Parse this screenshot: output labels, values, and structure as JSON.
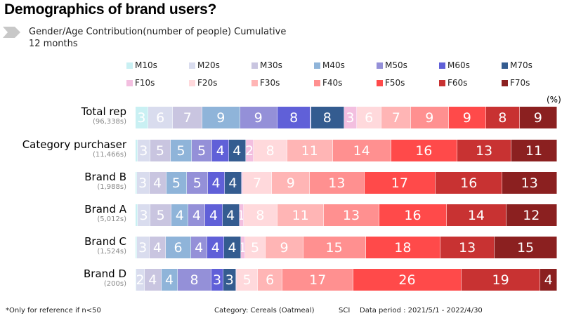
{
  "chart_data": {
    "type": "bar",
    "orientation": "horizontal",
    "stacked": true,
    "title": "Demographics of brand users?",
    "subtitle": "Gender/Age Contribution(number of people) Cumulative",
    "subtitle2": "12 months",
    "unit": "(%)",
    "legend_placement": "top",
    "categories": [
      "Total rep",
      "Category purchaser",
      "Brand B",
      "Brand A",
      "Brand C",
      "Brand D"
    ],
    "category_notes": [
      "(96,338s)",
      "(11,466s)",
      "(1,988s)",
      "(5,012s)",
      "(1,524s)",
      "(200s)"
    ],
    "series": [
      {
        "name": "M10s",
        "color": "#c9f0f3",
        "values": [
          3,
          0.5,
          0.3,
          0.5,
          0.3,
          0.2
        ]
      },
      {
        "name": "M20s",
        "color": "#d9dcee",
        "values": [
          6,
          3,
          3,
          3,
          3,
          2
        ]
      },
      {
        "name": "M30s",
        "color": "#c9c5e0",
        "values": [
          7,
          5,
          4,
          5,
          4,
          4
        ]
      },
      {
        "name": "M40s",
        "color": "#8fb4d9",
        "values": [
          9,
          5,
          5,
          4,
          6,
          4
        ]
      },
      {
        "name": "M50s",
        "color": "#9490d8",
        "values": [
          9,
          5,
          5,
          4,
          4,
          8
        ]
      },
      {
        "name": "M60s",
        "color": "#6060d8",
        "values": [
          8,
          4,
          4,
          4,
          4,
          3
        ]
      },
      {
        "name": "M70s",
        "color": "#345c90",
        "values": [
          8,
          4,
          4,
          4,
          4,
          3
        ]
      },
      {
        "name": "F10s",
        "color": "#f3bfe0",
        "values": [
          3,
          2,
          0.3,
          1,
          1,
          0.2
        ]
      },
      {
        "name": "F20s",
        "color": "#ffd9dc",
        "values": [
          6,
          8,
          7,
          8,
          5,
          5
        ]
      },
      {
        "name": "F30s",
        "color": "#ffb5b5",
        "values": [
          7,
          11,
          9,
          11,
          9,
          6
        ]
      },
      {
        "name": "F40s",
        "color": "#ff9090",
        "values": [
          9,
          14,
          13,
          13,
          15,
          17
        ]
      },
      {
        "name": "F50s",
        "color": "#ff4a4a",
        "values": [
          9,
          16,
          17,
          16,
          18,
          26
        ]
      },
      {
        "name": "F60s",
        "color": "#c83232",
        "values": [
          8,
          13,
          16,
          14,
          13,
          19
        ]
      },
      {
        "name": "F70s",
        "color": "#8b2020",
        "values": [
          9,
          11,
          13,
          12,
          15,
          4
        ]
      }
    ]
  },
  "footer": {
    "note": "*Only for reference if n<50",
    "category": "Category: Cereals (Oatmeal)",
    "source": "SCI",
    "period": "Data period : 2021/5/1 - 2022/4/30"
  }
}
